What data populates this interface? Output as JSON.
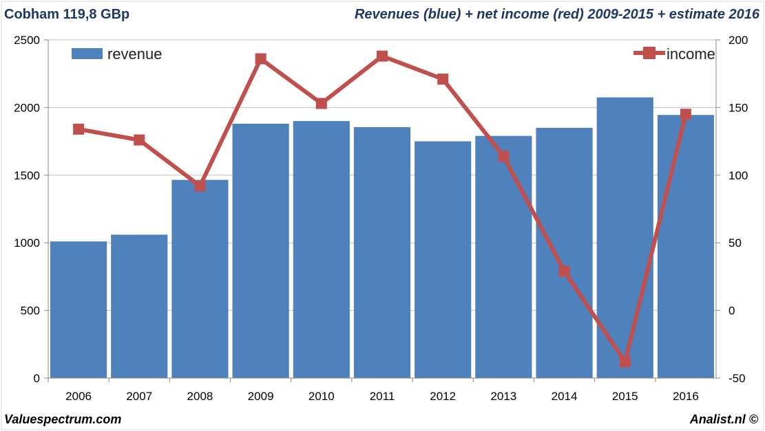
{
  "header": {
    "company": "Cobham 119,8 GBp",
    "subtitle": "Revenues (blue) + net income (red) 2009-2015 + estimate 2016"
  },
  "footer": {
    "left": "Valuespectrum.com",
    "right": "Analist.nl ©"
  },
  "colors": {
    "revenue": "#4f81bd",
    "income": "#c0504d",
    "grid": "#bfbfbf",
    "title": "#1f3864"
  },
  "chart_data": {
    "type": "bar",
    "categories": [
      "2006",
      "2007",
      "2008",
      "2009",
      "2010",
      "2011",
      "2012",
      "2013",
      "2014",
      "2015",
      "2016"
    ],
    "series": [
      {
        "name": "revenue",
        "type": "bar",
        "axis": "left",
        "values": [
          1010,
          1060,
          1465,
          1880,
          1900,
          1855,
          1750,
          1790,
          1850,
          2075,
          1945
        ]
      },
      {
        "name": "income",
        "type": "line",
        "axis": "right",
        "values": [
          134,
          126,
          92,
          186,
          153,
          188,
          171,
          114,
          29,
          -38,
          145
        ]
      }
    ],
    "left_axis": {
      "min": 0,
      "max": 2500,
      "ticks": [
        "0",
        "500",
        "1000",
        "1500",
        "2000",
        "2500"
      ]
    },
    "right_axis": {
      "min": -50,
      "max": 200,
      "ticks": [
        "-50",
        "0",
        "50",
        "100",
        "150",
        "200"
      ]
    },
    "legend": {
      "revenue": "revenue",
      "income": "income"
    },
    "grid": true
  }
}
